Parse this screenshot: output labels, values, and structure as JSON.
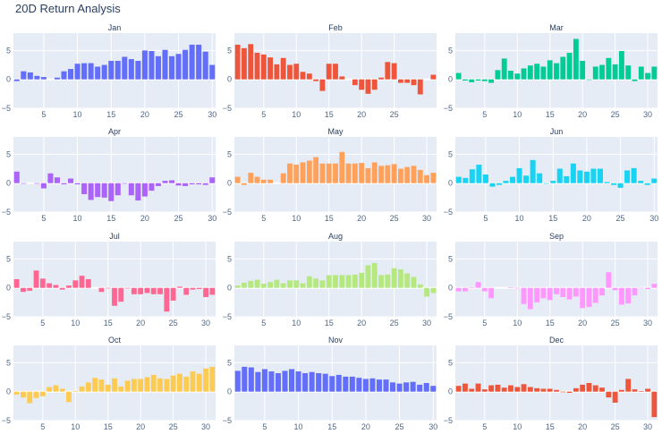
{
  "title": "20D Return Analysis",
  "colors": {
    "background": "#ffffff",
    "plot_bg": "#e5ecf6",
    "grid": "#ffffff",
    "text": "#2a3f5f",
    "tick_text": "#506784"
  },
  "chart_data": [
    {
      "type": "bar",
      "title": "Jan",
      "color": "#636efa",
      "x_start": 1,
      "ylim": [
        -5,
        8
      ],
      "yticks": [
        -5,
        0,
        5
      ],
      "xticks": [
        5,
        10,
        15,
        20,
        25,
        30
      ],
      "values": [
        -0.3,
        1.4,
        1.2,
        0.6,
        0.4,
        0,
        0.3,
        1.4,
        1.8,
        2.7,
        2.8,
        2.8,
        2.2,
        2.5,
        3.2,
        3.2,
        3.9,
        3.5,
        3.2,
        5.0,
        4.9,
        4.0,
        5.1,
        4.0,
        4.4,
        5.1,
        6.0,
        6.0,
        4.8,
        2.5
      ]
    },
    {
      "type": "bar",
      "title": "Feb",
      "color": "#ef553b",
      "x_start": 1,
      "ylim": [
        -5,
        8
      ],
      "yticks": [
        -5,
        0,
        5
      ],
      "xticks": [
        5,
        10,
        15,
        20,
        25
      ],
      "values": [
        6.0,
        5.4,
        6.1,
        4.6,
        4.3,
        3.8,
        2.6,
        3.7,
        2.5,
        2.7,
        1.3,
        1.0,
        -0.3,
        -2.0,
        2.7,
        2.7,
        0.5,
        0,
        -1.0,
        -1.8,
        -2.5,
        -1.8,
        0.3,
        3.0,
        2.8,
        -0.6,
        -0.6,
        -1.0,
        -2.6,
        0,
        0.8
      ]
    },
    {
      "type": "bar",
      "title": "Mar",
      "color": "#00cc96",
      "x_start": 1,
      "ylim": [
        -5,
        8
      ],
      "yticks": [
        -5,
        0,
        5
      ],
      "xticks": [
        5,
        10,
        15,
        20,
        25,
        30
      ],
      "values": [
        1.1,
        -0.2,
        -0.5,
        -0.2,
        -0.3,
        -0.6,
        1.6,
        3.6,
        1.5,
        1.0,
        1.9,
        2.4,
        2.7,
        2.2,
        3.3,
        2.8,
        3.9,
        4.6,
        7.0,
        3.2,
        -0.1,
        2.2,
        2.5,
        3.7,
        2.6,
        4.9,
        2.4,
        -0.3,
        2.2,
        1.1,
        2.2
      ]
    },
    {
      "type": "bar",
      "title": "Apr",
      "color": "#ab63fa",
      "x_start": 1,
      "ylim": [
        -5,
        8
      ],
      "yticks": [
        -5,
        0,
        5
      ],
      "xticks": [
        5,
        10,
        15,
        20,
        25,
        30
      ],
      "values": [
        2.0,
        -0.1,
        0,
        -0.1,
        -0.9,
        1.7,
        1.0,
        -0.2,
        0.8,
        -0.2,
        -1.9,
        -2.9,
        -2.4,
        -2.5,
        -3.1,
        -2.1,
        -0.1,
        -2.1,
        -3.0,
        -2.3,
        -1.3,
        -0.5,
        0.4,
        0.5,
        -0.4,
        -0.5,
        -0.2,
        -0.2,
        -0.3,
        1.0
      ]
    },
    {
      "type": "bar",
      "title": "May",
      "color": "#ffa15a",
      "x_start": 1,
      "ylim": [
        -5,
        8
      ],
      "yticks": [
        -5,
        0,
        5
      ],
      "xticks": [
        5,
        10,
        15,
        20,
        25,
        30
      ],
      "values": [
        1.1,
        -0.3,
        1.8,
        1.1,
        0.6,
        0.6,
        0,
        1.7,
        3.4,
        3.2,
        3.6,
        3.9,
        4.5,
        3.4,
        3.4,
        3.4,
        5.4,
        3.4,
        3.4,
        3.5,
        2.6,
        3.6,
        3.0,
        3.1,
        3.3,
        2.5,
        2.8,
        3.0,
        2.3,
        1.4,
        1.8
      ]
    },
    {
      "type": "bar",
      "title": "Jun",
      "color": "#19d3f3",
      "x_start": 1,
      "ylim": [
        -5,
        8
      ],
      "yticks": [
        -5,
        0,
        5
      ],
      "xticks": [
        5,
        10,
        15,
        20,
        25,
        30
      ],
      "values": [
        1.1,
        0.9,
        2.4,
        3.2,
        1.5,
        -0.6,
        -0.3,
        0.4,
        1.1,
        2.6,
        1.3,
        4.0,
        1.7,
        -0.1,
        0.4,
        2.5,
        1.2,
        3.4,
        2.2,
        2.0,
        2.5,
        2.5,
        0.2,
        -0.3,
        -0.8,
        2.2,
        2.6,
        0.4,
        -0.3,
        0.8
      ]
    },
    {
      "type": "bar",
      "title": "Jul",
      "color": "#ff6692",
      "x_start": 1,
      "ylim": [
        -5,
        8
      ],
      "yticks": [
        -5,
        0,
        5
      ],
      "xticks": [
        5,
        10,
        15,
        20,
        25,
        30
      ],
      "values": [
        1.5,
        -0.7,
        -0.5,
        3.0,
        1.6,
        0.8,
        0.5,
        -0.3,
        0.4,
        1.3,
        2.1,
        1.5,
        0,
        -0.7,
        -0.1,
        -3.1,
        -2.4,
        -0.1,
        -1.1,
        -1.1,
        -0.9,
        -1.1,
        -1.1,
        -4.1,
        -2.2,
        0.2,
        -1.2,
        -0.3,
        -0.2,
        -1.6,
        -1.2
      ]
    },
    {
      "type": "bar",
      "title": "Aug",
      "color": "#b6e880",
      "x_start": 1,
      "ylim": [
        -5,
        8
      ],
      "yticks": [
        -5,
        0,
        5
      ],
      "xticks": [
        5,
        10,
        15,
        20,
        25,
        30
      ],
      "values": [
        0.4,
        0.9,
        1.2,
        1.4,
        0.7,
        1.0,
        1.4,
        0.8,
        1.3,
        1.3,
        0.8,
        2.0,
        1.6,
        1.3,
        2.2,
        2.2,
        2.2,
        2.2,
        2.3,
        2.6,
        3.9,
        4.3,
        2.2,
        2.3,
        3.4,
        3.2,
        2.5,
        1.9,
        0.6,
        -1.5,
        -0.9
      ]
    },
    {
      "type": "bar",
      "title": "Sep",
      "color": "#ff97ff",
      "x_start": 1,
      "ylim": [
        -5,
        8
      ],
      "yticks": [
        -5,
        0,
        5
      ],
      "xticks": [
        5,
        10,
        15,
        20,
        25,
        30
      ],
      "values": [
        -0.6,
        -0.6,
        0.1,
        1.0,
        -0.6,
        -1.8,
        0,
        0,
        0.1,
        -0.1,
        -2.8,
        -3.7,
        -2.5,
        -1.8,
        -2.1,
        -1.1,
        -1.6,
        -2.0,
        -1.5,
        -3.5,
        -3.3,
        -2.6,
        -1.3,
        2.7,
        -0.4,
        -2.9,
        -2.7,
        -1.3,
        -0.1,
        -0.2,
        0.7
      ]
    },
    {
      "type": "bar",
      "title": "Oct",
      "color": "#fecb52",
      "x_start": 1,
      "ylim": [
        -5,
        8
      ],
      "yticks": [
        -5,
        0,
        5
      ],
      "xticks": [
        5,
        10,
        15,
        20,
        25,
        30
      ],
      "values": [
        -0.5,
        -1.0,
        -2.0,
        -1.1,
        -0.8,
        0.8,
        1.1,
        0.5,
        -1.8,
        0.1,
        0.9,
        1.6,
        2.4,
        2.1,
        1.2,
        2.3,
        0.9,
        1.9,
        2.2,
        2.2,
        2.5,
        2.9,
        2.3,
        2.2,
        2.8,
        3.1,
        2.6,
        3.5,
        3.1,
        4.0,
        4.3
      ]
    },
    {
      "type": "bar",
      "title": "Nov",
      "color": "#636efa",
      "x_start": 1,
      "ylim": [
        -5,
        8
      ],
      "yticks": [
        -5,
        0,
        5
      ],
      "xticks": [
        5,
        10,
        15,
        20,
        25,
        30
      ],
      "values": [
        3.6,
        4.3,
        4.2,
        3.4,
        3.9,
        3.5,
        3.2,
        3.6,
        3.9,
        3.5,
        3.2,
        3.4,
        3.2,
        3.1,
        2.7,
        2.9,
        2.6,
        2.6,
        2.4,
        2.2,
        2.3,
        2.1,
        2.1,
        1.6,
        1.4,
        1.6,
        1.7,
        1.2,
        1.5,
        1.0
      ]
    },
    {
      "type": "bar",
      "title": "Dec",
      "color": "#ef553b",
      "x_start": 1,
      "ylim": [
        -5,
        8
      ],
      "yticks": [
        -5,
        0,
        5
      ],
      "xticks": [
        5,
        10,
        15,
        20,
        25,
        30
      ],
      "values": [
        1.0,
        1.4,
        0.5,
        1.4,
        0.4,
        1.1,
        1.2,
        0.7,
        1.1,
        0.8,
        1.3,
        0.8,
        0.6,
        0.5,
        0.5,
        0.3,
        -0.1,
        -0.2,
        0.6,
        1.2,
        1.5,
        1.1,
        0.7,
        -1.0,
        -1.9,
        0.3,
        2.2,
        0.4,
        0.1,
        0.5,
        -4.4
      ]
    }
  ]
}
